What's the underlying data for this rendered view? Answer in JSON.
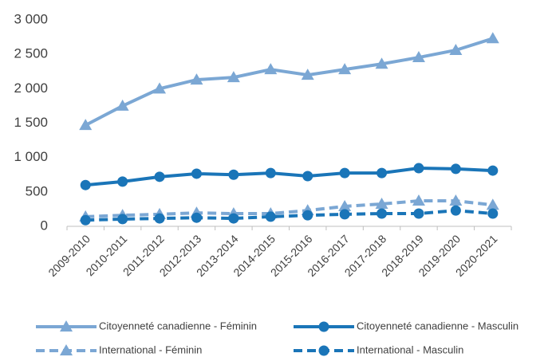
{
  "chart_data": {
    "type": "line",
    "categories": [
      "2009-2010",
      "2010-2011",
      "2011-2012",
      "2012-2013",
      "2013-2014",
      "2014-2015",
      "2015-2016",
      "2016-2017",
      "2017-2018",
      "2018-2019",
      "2019-2020",
      "2020-2021"
    ],
    "series": [
      {
        "name": "Citoyenneté canadienne - Féminin",
        "color": "#7ba7d4",
        "marker": "triangle",
        "dashed": false,
        "values": [
          1470,
          1750,
          2000,
          2130,
          2165,
          2280,
          2200,
          2280,
          2360,
          2455,
          2560,
          2730
        ]
      },
      {
        "name": "Citoyenneté canadienne - Masculin",
        "color": "#1a75b8",
        "marker": "circle",
        "dashed": false,
        "values": [
          600,
          650,
          720,
          765,
          750,
          775,
          730,
          775,
          775,
          845,
          835,
          810
        ]
      },
      {
        "name": "International - Féminin",
        "color": "#7ba7d4",
        "marker": "triangle",
        "dashed": true,
        "values": [
          140,
          160,
          175,
          195,
          185,
          185,
          230,
          290,
          325,
          370,
          370,
          310
        ]
      },
      {
        "name": "International - Masculin",
        "color": "#1a75b8",
        "marker": "circle",
        "dashed": true,
        "values": [
          90,
          105,
          115,
          125,
          115,
          140,
          160,
          175,
          185,
          185,
          230,
          185
        ]
      }
    ],
    "ylim": [
      0,
      3000
    ],
    "yticks": [
      0,
      500,
      {
        "value": 1000,
        "label": "1 000"
      },
      {
        "value": 1500,
        "label": "1 500"
      },
      {
        "value": 2000,
        "label": "2 000"
      },
      {
        "value": 2500,
        "label": "2 500"
      },
      {
        "value": 3000,
        "label": "3 000"
      }
    ],
    "grid": false
  }
}
